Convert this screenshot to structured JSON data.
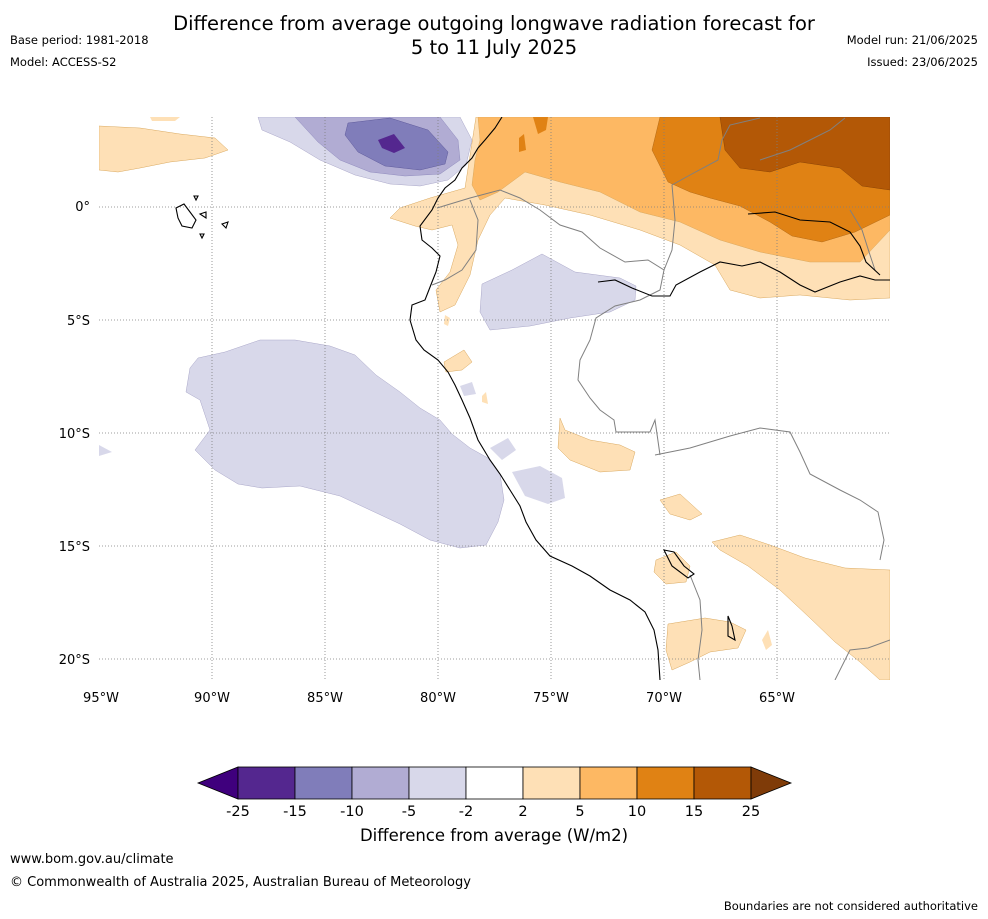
{
  "header": {
    "title_line1": "Difference from average outgoing longwave radiation forecast for",
    "title_line2": "5 to 11 July 2025",
    "base_period": "Base period: 1981-2018",
    "model": "Model: ACCESS-S2",
    "model_run": "Model run: 21/06/2025",
    "issued": "Issued: 23/06/2025"
  },
  "map": {
    "lon_labels": [
      "95°W",
      "90°W",
      "85°W",
      "80°W",
      "75°W",
      "70°W",
      "65°W"
    ],
    "lat_labels": [
      "0°",
      "5°S",
      "10°S",
      "15°S",
      "20°S"
    ],
    "colors": {
      "ocean": "#ffffff",
      "coast": "#000000",
      "border": "#808080",
      "grid": "#7f7f7f"
    }
  },
  "colorbar": {
    "tick_labels": [
      "-25",
      "-15",
      "-10",
      "-5",
      "-2",
      "2",
      "5",
      "10",
      "15",
      "25"
    ],
    "colors": [
      "#3f007d",
      "#54278f",
      "#807dba",
      "#b1acd3",
      "#d8d8ea",
      "#ffffff",
      "#fee0b6",
      "#fdb863",
      "#e08214",
      "#b35806",
      "#7f3b08"
    ],
    "label": "Difference from average (W/m2)"
  },
  "footer": {
    "website": "www.bom.gov.au/climate",
    "copyright": "© Commonwealth of Australia 2025, Australian Bureau of Meteorology",
    "disclaimer": "Boundaries are not considered authoritative"
  }
}
